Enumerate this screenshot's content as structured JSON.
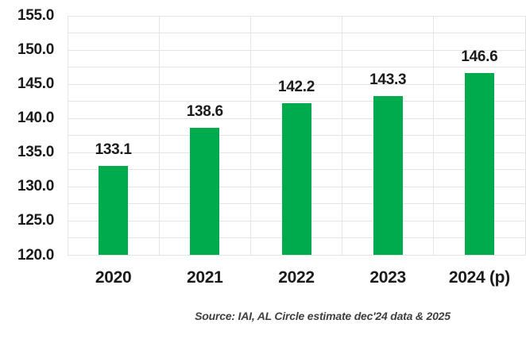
{
  "chart_data": {
    "type": "bar",
    "title": "",
    "xlabel": "",
    "ylabel": "",
    "categories": [
      "2020",
      "2021",
      "2022",
      "2023",
      "2024 (p)"
    ],
    "values": [
      133.1,
      138.6,
      142.2,
      143.3,
      146.6
    ],
    "value_labels": [
      "133.1",
      "138.6",
      "142.2",
      "143.3",
      "146.6"
    ],
    "ylim": [
      120.0,
      155.0
    ],
    "ytick_step": 5.0,
    "ytick_labels": [
      "155.0",
      "150.0",
      "145.0",
      "140.0",
      "135.0",
      "130.0",
      "125.0",
      "120.0"
    ],
    "grid_minor_step": 2.5,
    "grid": true,
    "legend": false,
    "bar_color": "#00AB4E"
  },
  "source_note": "Source: IAI, AL Circle estimate dec'24 data & 2025",
  "colors": {
    "bar": "#00AB4E",
    "grid": "#e4e4e4",
    "text": "#1b1b1b",
    "source_text": "#3f3f3f",
    "background": "#ffffff"
  }
}
